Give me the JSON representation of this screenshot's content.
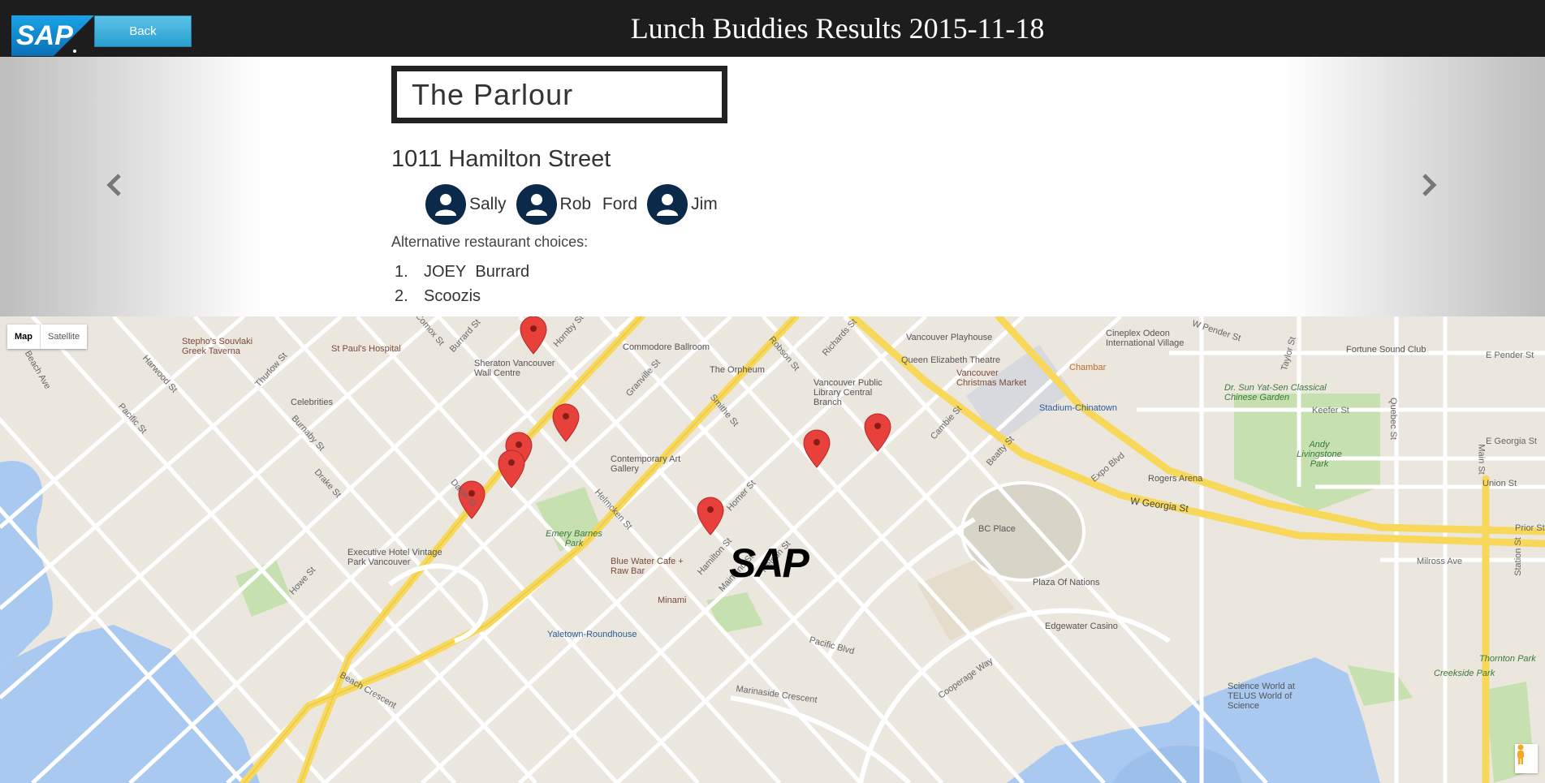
{
  "header": {
    "logo_text": "SAP",
    "back_label": "Back",
    "title": "Lunch Buddies Results 2015-11-18"
  },
  "result": {
    "restaurant_name": "The Parlour",
    "address": "1011 Hamilton Street",
    "buddies": [
      {
        "name": "Sally"
      },
      {
        "name": "Rob Ford"
      },
      {
        "name": "Jim"
      }
    ],
    "alternatives_label": "Alternative restaurant choices:",
    "alternatives": [
      {
        "num": "1.",
        "name": "JOEY Burrard"
      },
      {
        "num": "2.",
        "name": "Scoozis"
      }
    ]
  },
  "carousel": {
    "prev_icon": "chevron-left-icon",
    "next_icon": "chevron-right-icon"
  },
  "map": {
    "type_map_label": "Map",
    "type_satellite_label": "Satellite",
    "overlay_logo": "SAP",
    "labels": [
      "Stepho's Souvlaki Greek Taverna",
      "St Paul's Hospital",
      "Sheraton Vancouver Wall Centre",
      "Commodore Ballroom",
      "The Orpheum",
      "Vancouver Public Library Central Branch",
      "Vancouver Playhouse",
      "Queen Elizabeth Theatre",
      "Vancouver Christmas Market",
      "Cineplex Odeon International Village",
      "Fortune Sound Club",
      "Chambar",
      "Dr. Sun Yat-Sen Classical Chinese Garden",
      "Stadium-Chinatown",
      "Andy Livingstone Park",
      "Rogers Arena",
      "Celebrities",
      "Contemporary Art Gallery",
      "Emery Barnes Park",
      "BC Place",
      "Executive Hotel Vintage Park Vancouver",
      "Blue Water Cafe + Raw Bar",
      "Minami",
      "Plaza Of Nations",
      "Edgewater Casino",
      "Yaletown-Roundhouse",
      "Science World at TELUS World of Science",
      "Creekside Park",
      "Thornton Park"
    ],
    "streets": [
      "Comox St",
      "Burrard St",
      "Hornby St",
      "Robson St",
      "Richards St",
      "Granville St",
      "Smithe St",
      "Cambie St",
      "Beatty St",
      "Expo Blvd",
      "W Georgia St",
      "W Pender St",
      "Keefer St",
      "Union St",
      "E Georgia St",
      "E Pender St",
      "Main St",
      "Quebec St",
      "Taylor St",
      "Prior St",
      "Milross Ave",
      "Station St",
      "Pacific St",
      "Harwood St",
      "Thurlow St",
      "Burnaby St",
      "Drake St",
      "Davie St",
      "Howe St",
      "Homer St",
      "Hamilton St",
      "Mainland St",
      "Nelson St",
      "Helmcken St",
      "Pacific Blvd",
      "Cooperage Way",
      "Marinaside Crescent",
      "Beach Crescent",
      "Beach Ave"
    ],
    "marker_count": 8,
    "colors": {
      "water": "#a9c9f0",
      "park": "#c6e0b0",
      "highway": "#f7d85a",
      "marker": "#e8413c"
    }
  }
}
